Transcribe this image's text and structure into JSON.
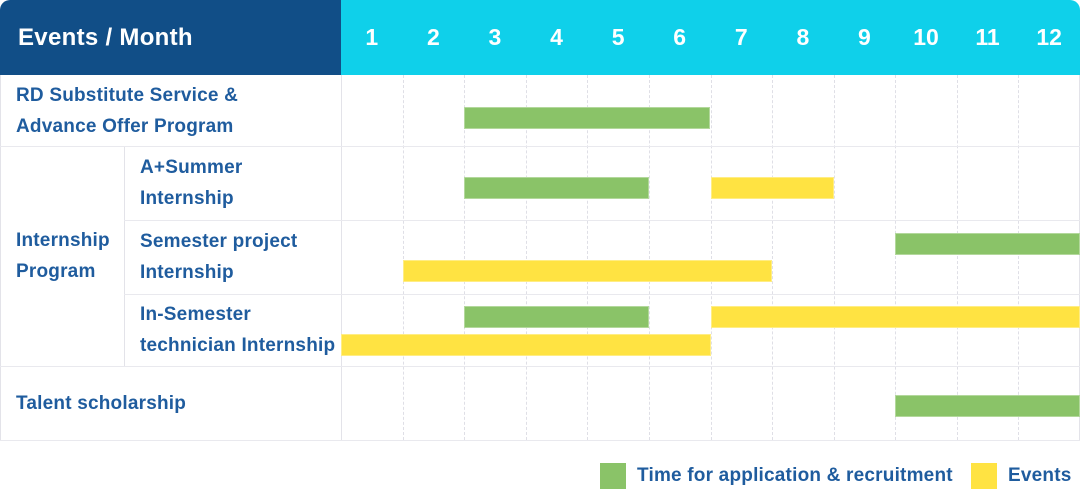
{
  "title": "Events / Month",
  "months": [
    "1",
    "2",
    "3",
    "4",
    "5",
    "6",
    "7",
    "8",
    "9",
    "10",
    "11",
    "12"
  ],
  "colors": {
    "header_navy": "#114e87",
    "header_cyan": "#0fd0ea",
    "bar_green": "#8ac368",
    "bar_yellow": "#ffe342",
    "label_blue": "#1f5c9e",
    "grid_line": "#e3e3e9"
  },
  "legend": [
    {
      "key": "application",
      "label": "Time for application & recruitment",
      "color": "#8ac368"
    },
    {
      "key": "event",
      "label": "Events",
      "color": "#ffe342"
    }
  ],
  "chart_data": {
    "type": "gantt",
    "title": "Events / Month",
    "x_unit": "month",
    "x_range": [
      1,
      12
    ],
    "x_ticks": [
      "1",
      "2",
      "3",
      "4",
      "5",
      "6",
      "7",
      "8",
      "9",
      "10",
      "11",
      "12"
    ],
    "legend": {
      "application": "Time for application & recruitment",
      "event": "Events"
    },
    "group_label_lines": [
      "Internship",
      "Program"
    ],
    "rows": [
      {
        "label": "RD Substitute Service & Advance Offer Program",
        "label_lines": [
          "RD Substitute Service &",
          "Advance Offer Program"
        ],
        "group": null,
        "bars": [
          {
            "kind": "application",
            "start_month": 3,
            "end_month": 6,
            "lane": "single"
          }
        ]
      },
      {
        "label": "A+Summer Internship",
        "label_lines": [
          "A+Summer",
          "Internship"
        ],
        "group": "Internship Program",
        "bars": [
          {
            "kind": "application",
            "start_month": 3,
            "end_month": 5,
            "lane": "single"
          },
          {
            "kind": "event",
            "start_month": 7,
            "end_month": 8,
            "lane": "single"
          }
        ]
      },
      {
        "label": "Semester project Internship",
        "label_lines": [
          "Semester project",
          "Internship"
        ],
        "group": "Internship Program",
        "bars": [
          {
            "kind": "application",
            "start_month": 10,
            "end_month": 12,
            "lane": "top"
          },
          {
            "kind": "event",
            "start_month": 2,
            "end_month": 7,
            "lane": "bottom"
          }
        ]
      },
      {
        "label": "In-Semester technician Internship",
        "label_lines": [
          "In-Semester",
          "technician Internship"
        ],
        "group": "Internship Program",
        "bars": [
          {
            "kind": "application",
            "start_month": 3,
            "end_month": 5,
            "lane": "top"
          },
          {
            "kind": "event",
            "start_month": 7,
            "end_month": 12,
            "lane": "top"
          },
          {
            "kind": "event",
            "start_month": 1,
            "end_month": 6,
            "lane": "bottom"
          }
        ]
      },
      {
        "label": "Talent scholarship",
        "label_lines": [
          "Talent scholarship"
        ],
        "group": null,
        "bars": [
          {
            "kind": "application",
            "start_month": 10,
            "end_month": 12,
            "lane": "single"
          }
        ]
      }
    ]
  }
}
